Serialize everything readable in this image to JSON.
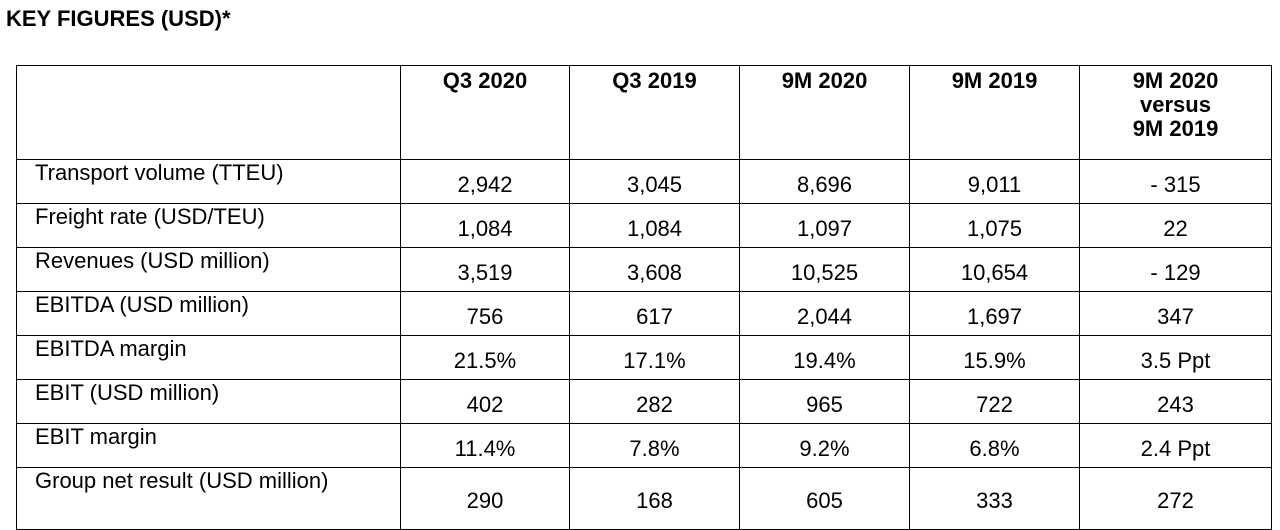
{
  "title": "KEY FIGURES (USD)*",
  "columns": [
    "Q3 2020",
    "Q3 2019",
    "9M 2020",
    "9M 2019"
  ],
  "last_column": [
    "9M 2020",
    "versus",
    "9M 2019"
  ],
  "rows": [
    {
      "label": "Transport volume (TTEU)",
      "values": [
        "2,942",
        "3,045",
        "8,696",
        "9,011",
        "- 315"
      ]
    },
    {
      "label": "Freight rate (USD/TEU)",
      "values": [
        "1,084",
        "1,084",
        "1,097",
        "1,075",
        "22"
      ]
    },
    {
      "label": "Revenues (USD million)",
      "values": [
        "3,519",
        "3,608",
        "10,525",
        "10,654",
        "- 129"
      ]
    },
    {
      "label": "EBITDA (USD million)",
      "values": [
        "756",
        "617",
        "2,044",
        "1,697",
        "347"
      ]
    },
    {
      "label": "EBITDA margin",
      "values": [
        "21.5%",
        "17.1%",
        "19.4%",
        "15.9%",
        "3.5 Ppt"
      ]
    },
    {
      "label": "EBIT (USD million)",
      "values": [
        "402",
        "282",
        "965",
        "722",
        "243"
      ]
    },
    {
      "label": "EBIT margin",
      "values": [
        "11.4%",
        "7.8%",
        "9.2%",
        "6.8%",
        "2.4 Ppt"
      ]
    },
    {
      "label": "Group net result (USD million)",
      "values": [
        "290",
        "168",
        "605",
        "333",
        "272"
      ]
    }
  ]
}
